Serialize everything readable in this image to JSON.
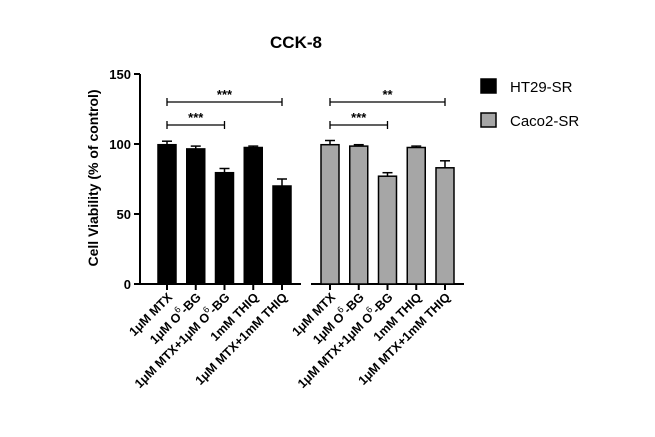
{
  "chart_data": {
    "type": "bar",
    "title": "CCK-8",
    "ylabel": "Cell Viability (% of control)",
    "ylim": [
      0,
      150
    ],
    "yticks": [
      0,
      50,
      100,
      150
    ],
    "categories": [
      {
        "pre": "1μM MTX",
        "sup": "",
        "post": ""
      },
      {
        "pre": "1μM O",
        "sup": "6",
        "post": "-BG"
      },
      {
        "pre": "1μM MTX+1μM O",
        "sup": "6",
        "post": "-BG"
      },
      {
        "pre": "1mM THIQ",
        "sup": "",
        "post": ""
      },
      {
        "pre": "1μM MTX+1mM THIQ",
        "sup": "",
        "post": ""
      }
    ],
    "series": [
      {
        "name": "HT29-SR",
        "color": "#000000",
        "values": [
          99.5,
          96.5,
          79.5,
          97.5,
          70
        ],
        "errors": [
          2.5,
          2,
          3,
          1,
          5
        ]
      },
      {
        "name": "Caco2-SR",
        "color": "#a6a6a6",
        "values": [
          99.5,
          98.5,
          77,
          97.5,
          83
        ],
        "errors": [
          3,
          1,
          2.5,
          1,
          5
        ]
      }
    ],
    "significance": [
      {
        "series": 0,
        "from": 0,
        "to": 4,
        "label": "***",
        "level": 1
      },
      {
        "series": 0,
        "from": 0,
        "to": 2,
        "label": "***",
        "level": 0
      },
      {
        "series": 1,
        "from": 0,
        "to": 4,
        "label": "**",
        "level": 1
      },
      {
        "series": 1,
        "from": 0,
        "to": 2,
        "label": "***",
        "level": 0
      }
    ],
    "legend_position": "top-right",
    "grid": false
  }
}
